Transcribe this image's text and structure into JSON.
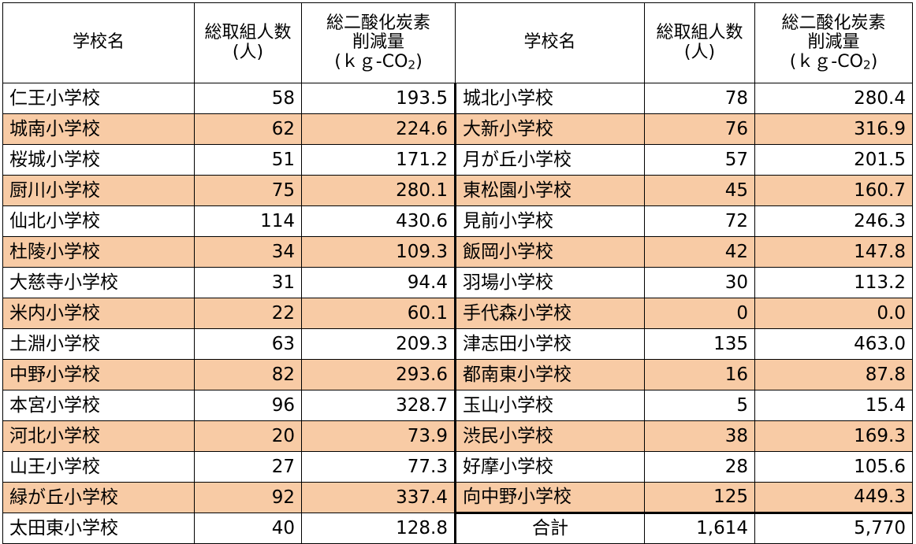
{
  "header": {
    "school_name": "学校名",
    "participants_line1": "総取組人数",
    "participants_line2": "(人)",
    "co2_line1": "総二酸化炭素",
    "co2_line2": "削減量",
    "co2_line3": "(ｋｇ-CO",
    "co2_sub": "2",
    "co2_close": ")"
  },
  "left": [
    {
      "name": "仁王小学校",
      "count": "58",
      "co2": "193.5"
    },
    {
      "name": "城南小学校",
      "count": "62",
      "co2": "224.6"
    },
    {
      "name": "桜城小学校",
      "count": "51",
      "co2": "171.2"
    },
    {
      "name": "厨川小学校",
      "count": "75",
      "co2": "280.1"
    },
    {
      "name": "仙北小学校",
      "count": "114",
      "co2": "430.6"
    },
    {
      "name": "杜陵小学校",
      "count": "34",
      "co2": "109.3"
    },
    {
      "name": "大慈寺小学校",
      "count": "31",
      "co2": "94.4"
    },
    {
      "name": "米内小学校",
      "count": "22",
      "co2": "60.1"
    },
    {
      "name": "土淵小学校",
      "count": "63",
      "co2": "209.3"
    },
    {
      "name": "中野小学校",
      "count": "82",
      "co2": "293.6"
    },
    {
      "name": "本宮小学校",
      "count": "96",
      "co2": "328.7"
    },
    {
      "name": "河北小学校",
      "count": "20",
      "co2": "73.9"
    },
    {
      "name": "山王小学校",
      "count": "27",
      "co2": "77.3"
    },
    {
      "name": "緑が丘小学校",
      "count": "92",
      "co2": "337.4"
    },
    {
      "name": "太田東小学校",
      "count": "40",
      "co2": "128.8"
    }
  ],
  "right": [
    {
      "name": "城北小学校",
      "count": "78",
      "co2": "280.4"
    },
    {
      "name": "大新小学校",
      "count": "76",
      "co2": "316.9"
    },
    {
      "name": "月が丘小学校",
      "count": "57",
      "co2": "201.5"
    },
    {
      "name": "東松園小学校",
      "count": "45",
      "co2": "160.7"
    },
    {
      "name": "見前小学校",
      "count": "72",
      "co2": "246.3"
    },
    {
      "name": "飯岡小学校",
      "count": "42",
      "co2": "147.8"
    },
    {
      "name": "羽場小学校",
      "count": "30",
      "co2": "113.2"
    },
    {
      "name": "手代森小学校",
      "count": "0",
      "co2": "0.0"
    },
    {
      "name": "津志田小学校",
      "count": "135",
      "co2": "463.0"
    },
    {
      "name": "都南東小学校",
      "count": "16",
      "co2": "87.8"
    },
    {
      "name": "玉山小学校",
      "count": "5",
      "co2": "15.4"
    },
    {
      "name": "渋民小学校",
      "count": "38",
      "co2": "169.3"
    },
    {
      "name": "好摩小学校",
      "count": "28",
      "co2": "105.6"
    },
    {
      "name": "向中野小学校",
      "count": "125",
      "co2": "449.3"
    }
  ],
  "total": {
    "label": "合計",
    "count": "1,614",
    "co2": "5,770"
  },
  "colors": {
    "stripe": "#f8cba5",
    "border": "#000000"
  }
}
